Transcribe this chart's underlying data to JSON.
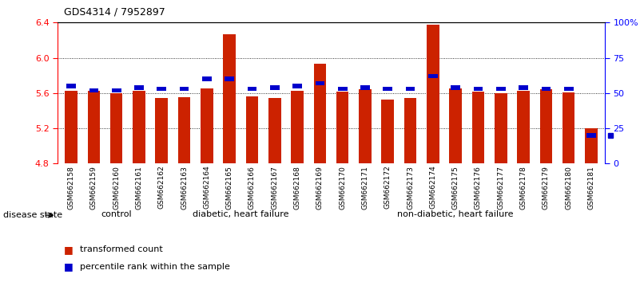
{
  "title": "GDS4314 / 7952897",
  "samples": [
    "GSM662158",
    "GSM662159",
    "GSM662160",
    "GSM662161",
    "GSM662162",
    "GSM662163",
    "GSM662164",
    "GSM662165",
    "GSM662166",
    "GSM662167",
    "GSM662168",
    "GSM662169",
    "GSM662170",
    "GSM662171",
    "GSM662172",
    "GSM662173",
    "GSM662174",
    "GSM662175",
    "GSM662176",
    "GSM662177",
    "GSM662178",
    "GSM662179",
    "GSM662180",
    "GSM662181"
  ],
  "red_values": [
    5.63,
    5.63,
    5.6,
    5.63,
    5.54,
    5.55,
    5.65,
    6.27,
    5.56,
    5.54,
    5.63,
    5.93,
    5.62,
    5.64,
    5.53,
    5.54,
    6.38,
    5.65,
    5.62,
    5.6,
    5.63,
    5.64,
    5.61,
    5.2
  ],
  "blue_values": [
    55,
    52,
    52,
    54,
    53,
    53,
    60,
    60,
    53,
    54,
    55,
    57,
    53,
    54,
    53,
    53,
    62,
    54,
    53,
    53,
    54,
    53,
    53,
    20
  ],
  "group_dividers": [
    5,
    11
  ],
  "ylim_left": [
    4.8,
    6.4
  ],
  "ylim_right": [
    0,
    100
  ],
  "yticks_left": [
    4.8,
    5.2,
    5.6,
    6.0,
    6.4
  ],
  "yticks_right": [
    0,
    25,
    50,
    75,
    100
  ],
  "ytick_labels_right": [
    "0",
    "25",
    "50",
    "75",
    "100%"
  ],
  "bar_color_red": "#cc2200",
  "bar_color_blue": "#0000cc",
  "bar_width": 0.55,
  "legend_items": [
    {
      "label": "transformed count",
      "color": "#cc2200"
    },
    {
      "label": "percentile rank within the sample",
      "color": "#0000cc"
    }
  ],
  "disease_state_label": "disease state",
  "group_labels": [
    "control",
    "diabetic, heart failure",
    "non-diabetic, heart failure"
  ],
  "group_ranges": [
    [
      0,
      5
    ],
    [
      5,
      11
    ],
    [
      11,
      24
    ]
  ],
  "gray_bg": "#c8c8c8",
  "green_bg": "#90ee90"
}
